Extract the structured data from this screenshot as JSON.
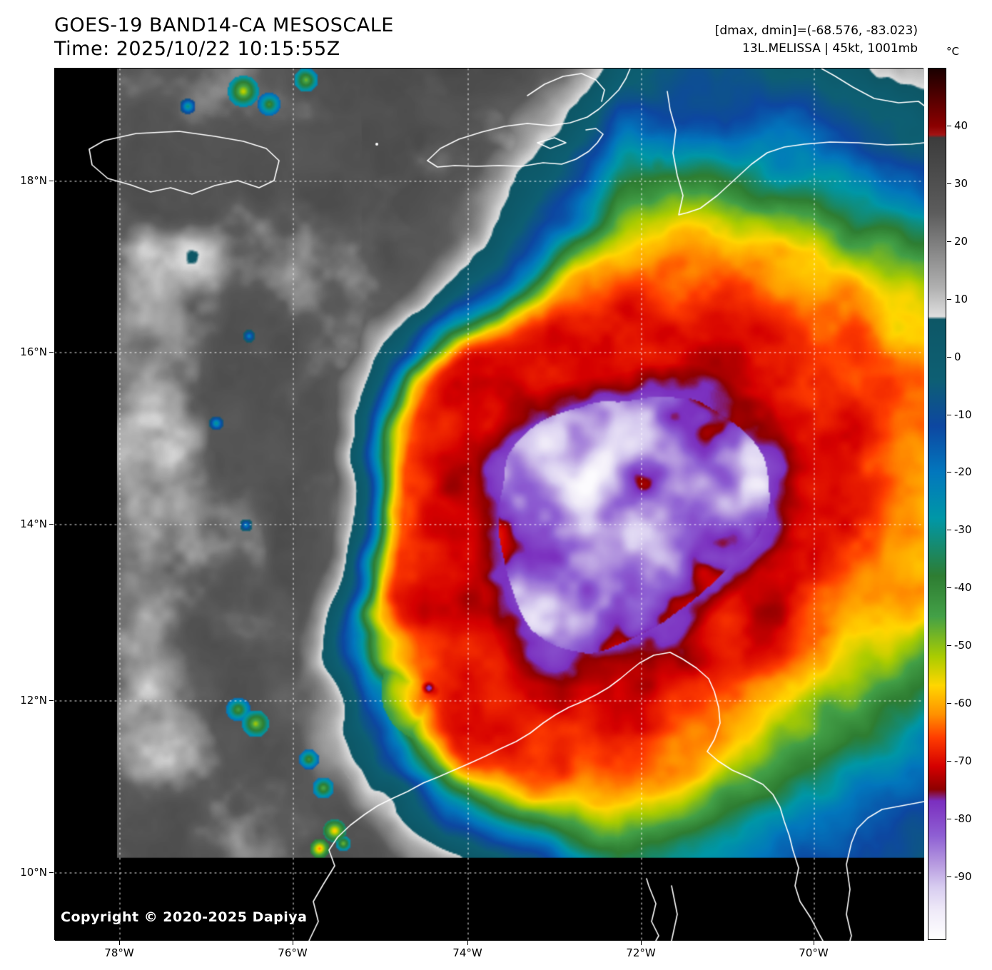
{
  "header": {
    "title": "GOES-19 BAND14-CA MESOSCALE",
    "time_line": "Time: 2025/10/22 10:15:55Z",
    "dmax_dmin": "[dmax, dmin]=(-68.576, -83.023)",
    "storm_info": "13L.MELISSA | 45kt, 1001mb"
  },
  "map": {
    "copyright": "Copyright © 2020-2025 Dapiya",
    "lat_ticks": [
      "18°N",
      "16°N",
      "14°N",
      "12°N",
      "10°N"
    ],
    "lon_ticks": [
      "78°W",
      "76°W",
      "74°W",
      "72°W",
      "70°W"
    ]
  },
  "colorbar": {
    "unit": "°C",
    "tick_values": [
      40,
      30,
      20,
      10,
      0,
      -10,
      -20,
      -30,
      -40,
      -50,
      -60,
      -70,
      -80,
      -90
    ],
    "stops": [
      {
        "t": 50,
        "c": "#1a0000"
      },
      {
        "t": 40,
        "c": "#8b0000"
      },
      {
        "t": 38.5,
        "c": "#a31414"
      },
      {
        "t": 38,
        "c": "#3c3c3c"
      },
      {
        "t": 25,
        "c": "#5c5c5c"
      },
      {
        "t": 12,
        "c": "#b0b0b0"
      },
      {
        "t": 7,
        "c": "#dedede"
      },
      {
        "t": 6.5,
        "c": "#0d5766"
      },
      {
        "t": -4,
        "c": "#0d5f73"
      },
      {
        "t": -12,
        "c": "#0d47a1"
      },
      {
        "t": -20,
        "c": "#0277bd"
      },
      {
        "t": -28,
        "c": "#0097a7"
      },
      {
        "t": -38,
        "c": "#2e7d32"
      },
      {
        "t": -45,
        "c": "#43a047"
      },
      {
        "t": -52,
        "c": "#aacc00"
      },
      {
        "t": -57,
        "c": "#ffd600"
      },
      {
        "t": -62,
        "c": "#ff9100"
      },
      {
        "t": -66,
        "c": "#ff3d00"
      },
      {
        "t": -71,
        "c": "#d50000"
      },
      {
        "t": -75,
        "c": "#8e0000"
      },
      {
        "t": -77,
        "c": "#7b2fbf"
      },
      {
        "t": -83,
        "c": "#8e5fd3"
      },
      {
        "t": -88,
        "c": "#b79be0"
      },
      {
        "t": -92,
        "c": "#d8cdf0"
      },
      {
        "t": -96,
        "c": "#efeaf8"
      },
      {
        "t": -101,
        "c": "#ffffff"
      }
    ]
  }
}
